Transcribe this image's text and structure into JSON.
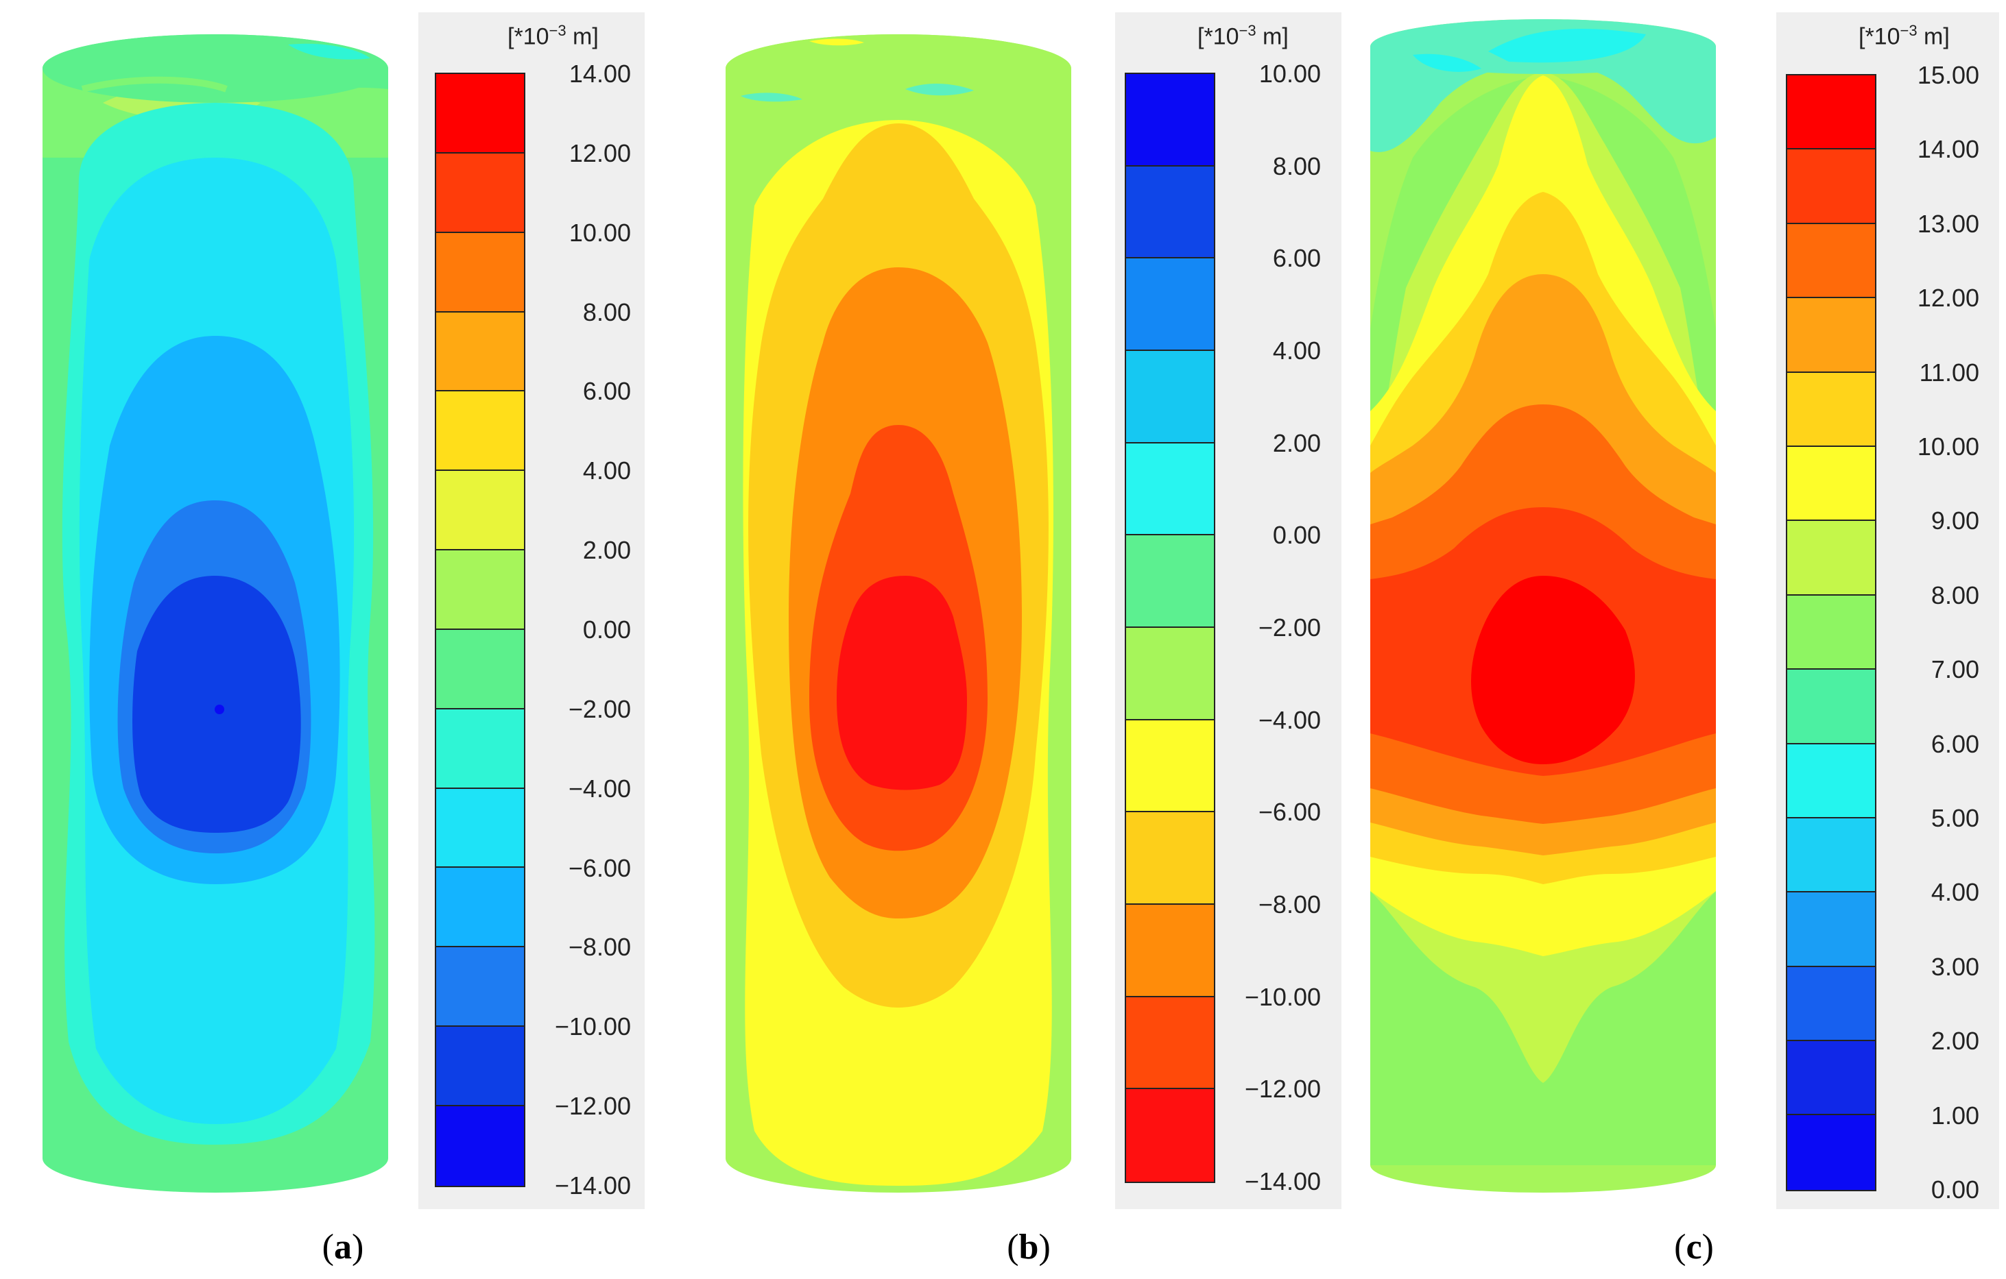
{
  "unit_label_prefix": "[*10",
  "unit_label_exp": "−3",
  "unit_label_suffix": " m]",
  "panels": [
    {
      "id": "a",
      "caption_open": "(",
      "caption_letter": "a",
      "caption_close": ")",
      "colors": [
        "#ff0000",
        "#ff3c0a",
        "#ff7a0a",
        "#ffa912",
        "#ffde1a",
        "#e8f53a",
        "#a6f55a",
        "#5cf08c",
        "#2ff5d5",
        "#1ee3f7",
        "#14b4ff",
        "#1e7cf2",
        "#0d3fe6",
        "#0a0af5"
      ],
      "ticks": [
        "14.00",
        "12.00",
        "10.00",
        "8.00",
        "6.00",
        "4.00",
        "2.00",
        "0.00",
        "−2.00",
        "−4.00",
        "−6.00",
        "−8.00",
        "−10.00",
        "−12.00",
        "−14.00"
      ]
    },
    {
      "id": "b",
      "caption_open": "(",
      "caption_letter": "b",
      "caption_close": ")",
      "colors": [
        "#0a0af5",
        "#0f46e8",
        "#1488f5",
        "#16c8f2",
        "#28f5f0",
        "#5cf090",
        "#a6f55a",
        "#fdfd2a",
        "#fdcf1a",
        "#ff8c0a",
        "#ff4a0a",
        "#ff1010"
      ],
      "ticks": [
        "10.00",
        "8.00",
        "6.00",
        "4.00",
        "2.00",
        "0.00",
        "−2.00",
        "−4.00",
        "−6.00",
        "−8.00",
        "−10.00",
        "−12.00",
        "−14.00"
      ]
    },
    {
      "id": "c",
      "caption_open": "(",
      "caption_letter": "c",
      "caption_close": ")",
      "colors": [
        "#ff0000",
        "#ff3c0a",
        "#ff6a0a",
        "#ffa214",
        "#ffd41a",
        "#fdfd2a",
        "#c4f74a",
        "#8ef562",
        "#4cf0a2",
        "#24f5ee",
        "#1cd0f5",
        "#1a9ef5",
        "#1760ef",
        "#1028e8",
        "#0a0af5"
      ],
      "ticks": [
        "15.00",
        "14.00",
        "13.00",
        "12.00",
        "11.00",
        "10.00",
        "9.00",
        "8.00",
        "7.00",
        "6.00",
        "5.00",
        "4.00",
        "3.00",
        "2.00",
        "1.00",
        "0.00"
      ]
    }
  ]
}
